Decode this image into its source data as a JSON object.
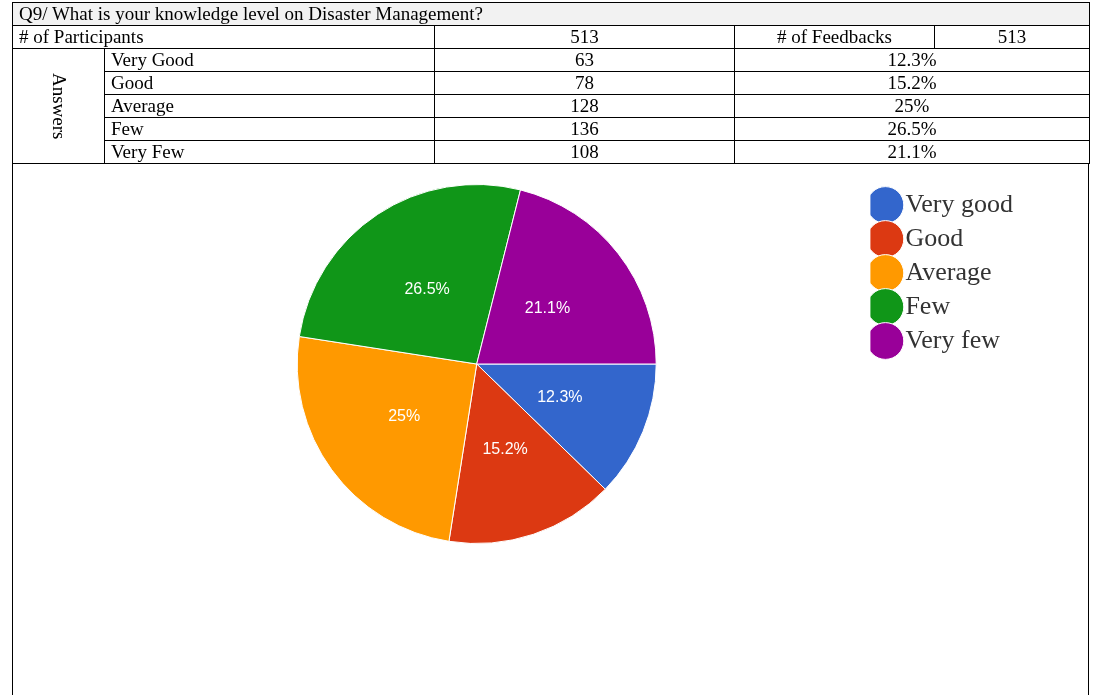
{
  "chart_data": [
    {
      "type": "other",
      "title": "Q9/ What is your knowledge level on Disaster Management?",
      "annotations": [
        "# of Participants",
        "513",
        "# of Feedbacks",
        "513",
        "Answers",
        "Very Good",
        "63",
        "12.3%",
        "Good",
        "78",
        "15.2%",
        "Average",
        "128",
        "25%",
        "Few",
        "136",
        "26.5%",
        "Very Few",
        "108",
        "21.1%"
      ]
    },
    {
      "type": "pie",
      "categories": [
        "Very good",
        "Good",
        "Average",
        "Few",
        "Very few"
      ],
      "values": [
        12.3,
        15.2,
        25,
        26.5,
        21.1
      ],
      "value_labels": [
        "12.3%",
        "15.2%",
        "25%",
        "26.5%",
        "21.1%"
      ],
      "colors": [
        "#3366cc",
        "#dc3912",
        "#ff9900",
        "#109618",
        "#990099"
      ],
      "legend": "right"
    }
  ]
}
